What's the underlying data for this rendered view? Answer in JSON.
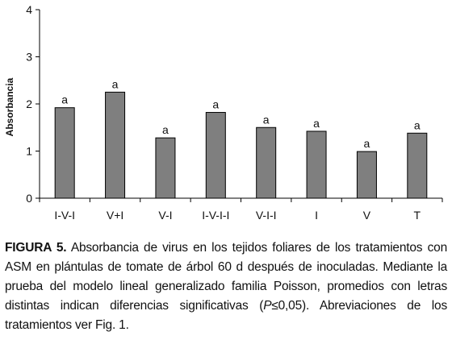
{
  "chart_data": {
    "type": "bar",
    "ylabel": "Absorbancia",
    "xlabel": "",
    "ylim": [
      0,
      4
    ],
    "yticks": [
      0,
      1,
      2,
      3,
      4
    ],
    "grid": false,
    "bar_color": "#7f7f7f",
    "categories": [
      "I-V-I",
      "V+I",
      "V-I",
      "I-V-I-I",
      "V-I-I",
      "I",
      "V",
      "T"
    ],
    "values": [
      1.92,
      2.25,
      1.28,
      1.82,
      1.5,
      1.42,
      0.99,
      1.38
    ],
    "data_labels": [
      "a",
      "a",
      "a",
      "a",
      "a",
      "a",
      "a",
      "a"
    ]
  },
  "caption": {
    "label": "FIGURA 5.",
    "text_1": " Absorbancia de virus en los tejidos foliares de los tratamientos con ASM en plántulas de tomate de árbol 60 d después de inoculadas. Mediante la prueba del modelo lineal generalizado familia Poisson, promedios con letras distintas indican diferencias significativas (",
    "p_symbol": "P",
    "text_2": "≤0,05). Abreviaciones de los tratamientos ver Fig. 1."
  }
}
